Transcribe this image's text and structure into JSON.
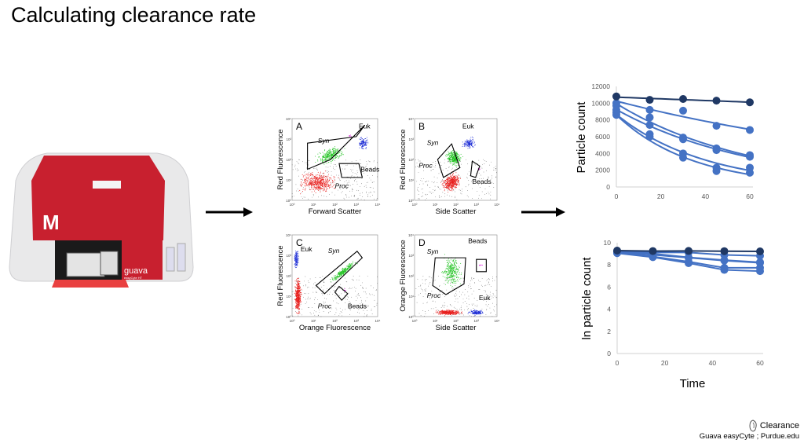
{
  "slide": {
    "title": "Calculating clearance rate",
    "credit_logo_label": "Clearance",
    "credit_source": "Guava easyCyte ; Purdue.edu"
  },
  "instrument": {
    "brand_logo": "M",
    "model_label": "guava",
    "model_sublabel": "easyCyte HT"
  },
  "cytometry_panels": [
    {
      "letter": "A",
      "xlabel": "Forward Scatter",
      "ylabel": "Red Fluorescence",
      "labels": [
        "Syn",
        "Euk",
        "Proc",
        "Beads"
      ]
    },
    {
      "letter": "B",
      "xlabel": "Side Scatter",
      "ylabel": "Red Fluorescence",
      "labels": [
        "Syn",
        "Euk",
        "Proc",
        "Beads"
      ]
    },
    {
      "letter": "C",
      "xlabel": "Orange Fluorescence",
      "ylabel": "Red Fluorescence",
      "labels": [
        "Syn",
        "Euk",
        "Proc",
        "Beads"
      ]
    },
    {
      "letter": "D",
      "xlabel": "Side Scatter",
      "ylabel": "Orange Fluorescence",
      "labels": [
        "Syn",
        "Euk",
        "Proc",
        "Beads"
      ]
    }
  ],
  "cytometry_ticks": [
    "10⁰",
    "10¹",
    "10²",
    "10³",
    "10⁴"
  ],
  "colors": {
    "dark_series": "#1f3864",
    "light_series": "#4472c4",
    "syn": "#22c322",
    "euk": "#1f2fd6",
    "proc": "#e8201e",
    "beads": "#e020e0",
    "instrument_red": "#c8202f"
  },
  "chart_data": [
    {
      "type": "scatter",
      "title": "",
      "xlabel": "",
      "ylabel": "Particle count",
      "xlim": [
        0,
        60
      ],
      "ylim": [
        0,
        12000
      ],
      "xticks": [
        "0",
        "20",
        "40",
        "60"
      ],
      "yticks": [
        "0",
        "2000",
        "4000",
        "6000",
        "8000",
        "10000",
        "12000"
      ],
      "grid": false,
      "trendline": "exponential",
      "x": [
        0,
        15,
        30,
        45,
        60
      ],
      "series": [
        {
          "color": "dark",
          "values": [
            10800,
            10400,
            10500,
            10300,
            10100
          ]
        },
        {
          "color": "light",
          "values": [
            10000,
            9200,
            9100,
            7300,
            6800
          ]
        },
        {
          "color": "light",
          "values": [
            9700,
            8300,
            5900,
            4600,
            3800
          ]
        },
        {
          "color": "light",
          "values": [
            9200,
            7400,
            5700,
            4400,
            3600
          ]
        },
        {
          "color": "light",
          "values": [
            8900,
            6300,
            4000,
            2300,
            2300
          ]
        },
        {
          "color": "light",
          "values": [
            8600,
            6000,
            3500,
            1900,
            1700
          ]
        }
      ]
    },
    {
      "type": "line",
      "title": "",
      "xlabel": "Time",
      "ylabel": "ln particle count",
      "xlim": [
        0,
        60
      ],
      "ylim": [
        0,
        10
      ],
      "xticks": [
        "0",
        "20",
        "40",
        "60"
      ],
      "yticks": [
        "0",
        "2",
        "4",
        "6",
        "8",
        "10"
      ],
      "grid": false,
      "x": [
        0,
        15,
        30,
        45,
        60
      ],
      "series": [
        {
          "color": "dark",
          "values": [
            9.29,
            9.25,
            9.26,
            9.24,
            9.22
          ]
        },
        {
          "color": "light",
          "values": [
            9.21,
            9.13,
            9.12,
            8.9,
            8.82
          ]
        },
        {
          "color": "light",
          "values": [
            9.18,
            9.02,
            8.68,
            8.43,
            8.24
          ]
        },
        {
          "color": "light",
          "values": [
            9.13,
            8.91,
            8.65,
            8.39,
            8.19
          ]
        },
        {
          "color": "light",
          "values": [
            9.09,
            8.75,
            8.29,
            7.74,
            7.74
          ]
        },
        {
          "color": "light",
          "values": [
            9.06,
            8.7,
            8.16,
            7.55,
            7.44
          ]
        }
      ]
    }
  ]
}
